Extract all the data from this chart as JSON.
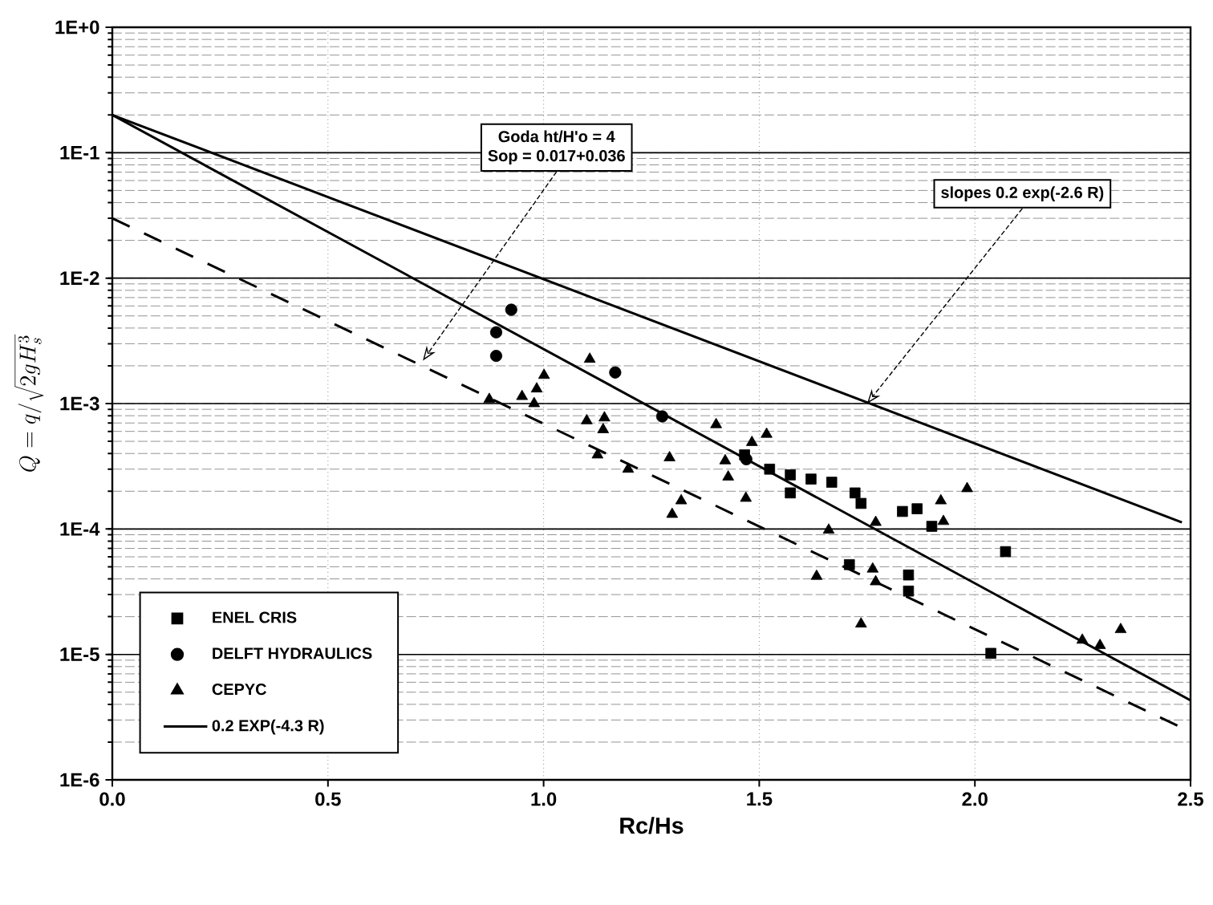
{
  "chart_data": {
    "type": "scatter",
    "xlabel": "Rc/Hs",
    "ylabel": "Q=q/\\sqrt{2gH_s^3}",
    "xlim": [
      0,
      2.5
    ],
    "ylim": [
      1e-06,
      1
    ],
    "xticks": [
      {
        "value": 0,
        "label": "0.0"
      },
      {
        "value": 0.5,
        "label": "0.5"
      },
      {
        "value": 1,
        "label": "1.0"
      },
      {
        "value": 1.5,
        "label": "1.5"
      },
      {
        "value": 2,
        "label": "2.0"
      },
      {
        "value": 2.5,
        "label": "2.5"
      }
    ],
    "yticks": [
      {
        "value": 1e-06,
        "label": "1E-6"
      },
      {
        "value": 1e-05,
        "label": "1E-5"
      },
      {
        "value": 0.0001,
        "label": "1E-4"
      },
      {
        "value": 0.001,
        "label": "1E-3"
      },
      {
        "value": 0.01,
        "label": "1E-2"
      },
      {
        "value": 0.1,
        "label": "1E-1"
      },
      {
        "value": 1,
        "label": "1E+0"
      }
    ],
    "log": "y",
    "grid": true,
    "legend": "bottom left",
    "annotations": [
      "Goda ht/H'o = 4",
      {
        "text": "Sop = 0.017+0.036",
        "x": 0.72,
        "y": 0.0022
      },
      {
        "text": "slopes 0.2 exp(-2.6 R)",
        "x": 1.75,
        "y": 0.001
      }
    ],
    "series": [
      {
        "name": "ENEL CRIS",
        "marker": "square",
        "color": "#000000",
        "x": [
          1.466,
          1.524,
          1.572,
          1.572,
          1.62,
          1.668,
          1.722,
          1.736,
          1.832,
          1.866,
          1.9,
          2.071,
          1.709,
          1.846,
          1.846,
          2.037
        ],
        "values": [
          0.00039,
          0.0003,
          0.00027,
          0.000194,
          0.00025,
          0.000236,
          0.000194,
          0.00016,
          0.000138,
          0.000145,
          0.000105,
          6.6e-05,
          5.2e-05,
          4.3e-05,
          3.2e-05,
          1.02e-05
        ]
      },
      {
        "name": "DELFT HYDRAULICS",
        "marker": "circle",
        "color": "#000000",
        "x": [
          0.925,
          0.89,
          0.89,
          1.166,
          1.275,
          1.47
        ],
        "values": [
          0.0056,
          0.0037,
          0.0024,
          0.00177,
          0.00079,
          0.00036
        ]
      },
      {
        "name": "CEPYC",
        "marker": "triangle",
        "color": "#000000",
        "x": [
          1.107,
          1.001,
          0.984,
          0.95,
          0.978,
          0.874,
          1.1,
          1.141,
          1.138,
          1.125,
          1.196,
          1.292,
          1.4,
          1.517,
          1.483,
          1.421,
          1.428,
          1.319,
          1.298,
          1.469,
          1.661,
          1.77,
          1.921,
          1.982,
          1.927,
          1.633,
          1.763,
          1.77,
          1.736,
          2.249,
          2.29,
          2.338
        ],
        "values": [
          0.00226,
          0.00168,
          0.00131,
          0.00114,
          0.001,
          0.00108,
          0.00073,
          0.00077,
          0.00062,
          0.00039,
          0.0003,
          0.00037,
          0.00068,
          0.00057,
          0.00049,
          0.00035,
          0.00026,
          0.000168,
          0.000131,
          0.000176,
          9.8e-05,
          0.000113,
          0.000168,
          0.00021,
          0.000115,
          4.2e-05,
          4.8e-05,
          3.8e-05,
          1.75e-05,
          1.3e-05,
          1.18e-05,
          1.58e-05
        ]
      },
      {
        "name": "0.2 EXP(-4.3 R)",
        "type": "line",
        "marker": "none",
        "line_style": "solid",
        "color": "#000000",
        "x": [
          0,
          2.5
        ],
        "values": [
          0.2,
          4.3e-06
        ]
      },
      {
        "type": "line",
        "marker": "none",
        "line_style": "solid",
        "color": "#000000",
        "x": [
          0,
          2.48
        ],
        "values": [
          0.2,
          0.000113
        ]
      },
      {
        "type": "line",
        "marker": "none",
        "line_style": "dashed",
        "color": "#000000",
        "x": [
          0,
          2.48
        ],
        "values": [
          0.03,
          2.6e-06
        ]
      }
    ]
  }
}
